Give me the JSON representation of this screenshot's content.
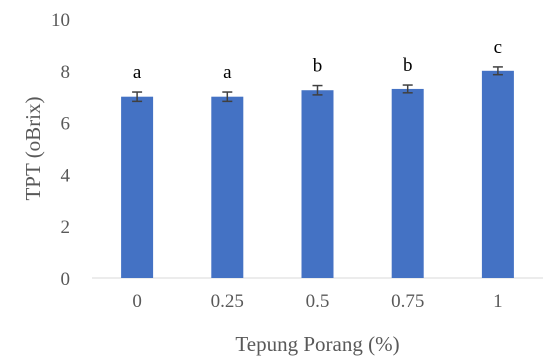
{
  "chart_data": {
    "type": "bar",
    "title": "",
    "xlabel": "Tepung Porang (%)",
    "ylabel": "TPT (oBrix)",
    "categories": [
      "0",
      "0.25",
      "0.5",
      "0.75",
      "1"
    ],
    "values": [
      7.0,
      7.0,
      7.25,
      7.3,
      8.0
    ],
    "errors": [
      0.18,
      0.18,
      0.18,
      0.15,
      0.15
    ],
    "significance_labels": [
      "a",
      "a",
      "b",
      "b",
      "c"
    ],
    "ylim": [
      0,
      10
    ],
    "yticks": [
      "0",
      "2",
      "4",
      "6",
      "8",
      "10"
    ],
    "grid": false,
    "legend": "none",
    "colors": {
      "bar": "#4472C4",
      "error_bar": "#404040",
      "axis_line": "#d9d9d9"
    }
  }
}
